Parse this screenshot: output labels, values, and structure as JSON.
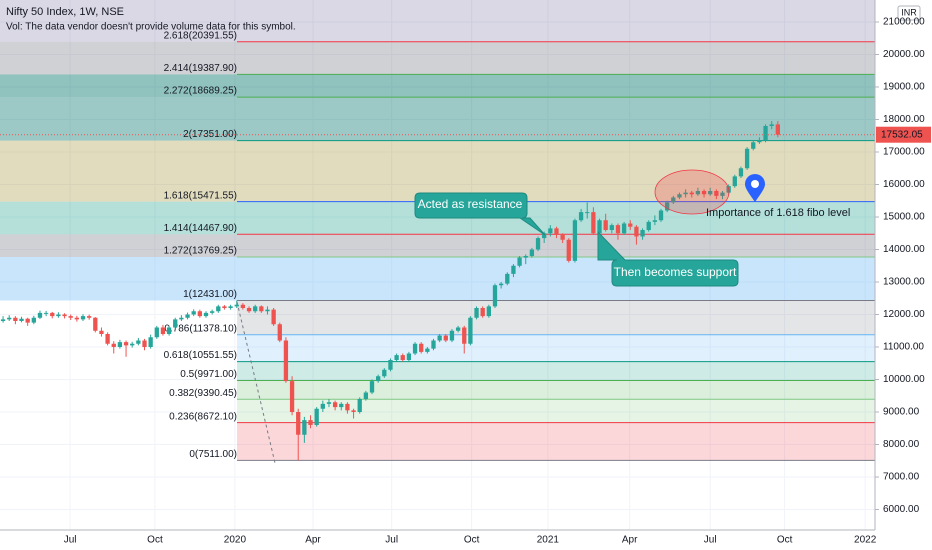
{
  "chart_data": {
    "type": "candlestick",
    "title": "Nifty 50 Index, 1W, NSE",
    "subtitle": "Vol: The data vendor doesn't provide volume data for this symbol.",
    "currency": "INR",
    "last_price_label": "17532.05",
    "up_color": "#26a69a",
    "down_color": "#ef5350",
    "grid": true,
    "ylim": [
      5369,
      21677
    ],
    "xlim": [
      -0.5,
      141.8
    ],
    "yticks": [
      {
        "value": 6000,
        "label": "6000.00"
      },
      {
        "value": 7000,
        "label": "7000.00"
      },
      {
        "value": 8000,
        "label": "8000.00"
      },
      {
        "value": 9000,
        "label": "9000.00"
      },
      {
        "value": 10000,
        "label": "10000.00"
      },
      {
        "value": 11000,
        "label": "11000.00"
      },
      {
        "value": 12000,
        "label": "12000.00"
      },
      {
        "value": 13000,
        "label": "13000.00"
      },
      {
        "value": 14000,
        "label": "14000.00"
      },
      {
        "value": 15000,
        "label": "15000.00"
      },
      {
        "value": 16000,
        "label": "16000.00"
      },
      {
        "value": 17000,
        "label": "17000.00"
      },
      {
        "value": 18000,
        "label": "18000.00"
      },
      {
        "value": 19000,
        "label": "19000.00"
      },
      {
        "value": 20000,
        "label": "20000.00"
      },
      {
        "value": 21000,
        "label": "21000.00"
      }
    ],
    "xticks": [
      {
        "value": 10.9,
        "label": "Jul"
      },
      {
        "value": 24.7,
        "label": "Oct"
      },
      {
        "value": 37.7,
        "label": "2020"
      },
      {
        "value": 50.4,
        "label": "Apr"
      },
      {
        "value": 63.2,
        "label": "Jul"
      },
      {
        "value": 76.2,
        "label": "Oct"
      },
      {
        "value": 88.6,
        "label": "2021"
      },
      {
        "value": 101.9,
        "label": "Apr"
      },
      {
        "value": 115,
        "label": "Jul"
      },
      {
        "value": 127.1,
        "label": "Oct"
      },
      {
        "value": 140.2,
        "label": "2022"
      }
    ],
    "fib_levels": [
      {
        "label": "0(7511.00)",
        "value": 7511,
        "color": "#787b86",
        "fill": "rgba(242,54,69,0.2)",
        "extend_left": false
      },
      {
        "label": "0.236(8672.10)",
        "value": 8672.1,
        "color": "#f23645",
        "fill": "rgba(129,199,132,0.2)",
        "extend_left": false
      },
      {
        "label": "0.382(9390.45)",
        "value": 9390.45,
        "color": "#81c784",
        "fill": "rgba(76,175,80,0.2)",
        "extend_left": false
      },
      {
        "label": "0.5(9971.00)",
        "value": 9971.0,
        "color": "#4caf50",
        "fill": "rgba(8,153,129,0.2)",
        "extend_left": false
      },
      {
        "label": "0.618(10551.55)",
        "value": 10551.55,
        "color": "#089981",
        "fill": "rgba(100,181,246,0.2)",
        "extend_left": false
      },
      {
        "label": "0.786(11378.10)",
        "value": 11378.1,
        "color": "#64b5f6",
        "fill": "rgba(120,123,134,0.2)",
        "extend_left": false
      },
      {
        "label": "1(12431.00)",
        "value": 12431.0,
        "color": "#787b86",
        "fill": "rgba(100,181,246,0.35)",
        "extend_left": true
      },
      {
        "label": "1.272(13769.25)",
        "value": 13769.25,
        "color": "#81c784",
        "fill": "rgba(120,123,134,0.35)",
        "extend_left": true
      },
      {
        "label": "1.414(14467.90)",
        "value": 14467.9,
        "color": "#f23645",
        "fill": "rgba(8,153,129,0.3)",
        "extend_left": true
      },
      {
        "label": "1.618(15471.55)",
        "value": 15471.55,
        "color": "#2962ff",
        "fill": "rgba(156,140,40,0.3)",
        "extend_left": true
      },
      {
        "label": "2(17351.00)",
        "value": 17351.0,
        "color": "#089981",
        "fill": "rgba(8,120,110,0.4)",
        "extend_left": true
      },
      {
        "label": "2.272(18689.25)",
        "value": 18689.25,
        "color": "#4caf50",
        "fill": "rgba(8,120,110,0.45)",
        "extend_left": true
      },
      {
        "label": "2.414(19387.90)",
        "value": 19387.9,
        "color": "#4caf50",
        "fill": "rgba(120,123,134,0.35)",
        "extend_left": true
      },
      {
        "label": "2.618(20391.55)",
        "value": 20391.55,
        "color": "#f23645",
        "fill": "rgba(70,60,120,0.2)",
        "extend_left": true
      }
    ],
    "annotations": [
      "Acted as resistance",
      "Then becomes support",
      "Importance of 1.618 fibo level"
    ],
    "candles": [
      [
        11800,
        11950,
        11750,
        11850
      ],
      [
        11850,
        11980,
        11800,
        11900
      ],
      [
        11900,
        11950,
        11700,
        11800
      ],
      [
        11800,
        11930,
        11760,
        11870
      ],
      [
        11870,
        11900,
        11650,
        11750
      ],
      [
        11750,
        11960,
        11700,
        11900
      ],
      [
        11900,
        12120,
        11860,
        12050
      ],
      [
        12050,
        12110,
        11950,
        12050
      ],
      [
        12050,
        12080,
        11880,
        11950
      ],
      [
        11950,
        12070,
        11900,
        12000
      ],
      [
        12000,
        12040,
        11880,
        11950
      ],
      [
        11950,
        12000,
        11830,
        11900
      ],
      [
        11900,
        11960,
        11780,
        11850
      ],
      [
        11850,
        12010,
        11800,
        11950
      ],
      [
        11950,
        12000,
        11840,
        11900
      ],
      [
        11900,
        11920,
        11450,
        11500
      ],
      [
        11500,
        11600,
        11320,
        11400
      ],
      [
        11400,
        11450,
        11050,
        11100
      ],
      [
        11100,
        11180,
        10800,
        11000
      ],
      [
        11000,
        11220,
        10950,
        11150
      ],
      [
        11150,
        11200,
        10700,
        11050
      ],
      [
        11050,
        11160,
        10980,
        11100
      ],
      [
        11100,
        11280,
        11050,
        11200
      ],
      [
        11200,
        11250,
        10900,
        11000
      ],
      [
        11000,
        11380,
        10950,
        11300
      ],
      [
        11300,
        11650,
        11250,
        11600
      ],
      [
        11600,
        11680,
        11350,
        11400
      ],
      [
        11400,
        11660,
        11350,
        11600
      ],
      [
        11600,
        11900,
        11550,
        11850
      ],
      [
        11850,
        11980,
        11800,
        11900
      ],
      [
        11900,
        12060,
        11850,
        12000
      ],
      [
        12000,
        12160,
        11950,
        12100
      ],
      [
        12100,
        12150,
        11900,
        11950
      ],
      [
        11950,
        12100,
        11900,
        12050
      ],
      [
        12050,
        12150,
        12000,
        12100
      ],
      [
        12100,
        12300,
        12050,
        12250
      ],
      [
        12250,
        12290,
        12150,
        12200
      ],
      [
        12200,
        12300,
        12150,
        12250
      ],
      [
        12250,
        12430,
        12200,
        12300
      ],
      [
        12300,
        12350,
        12150,
        12200
      ],
      [
        12200,
        12250,
        12050,
        12100
      ],
      [
        12100,
        12300,
        12050,
        12250
      ],
      [
        12250,
        12280,
        12050,
        12100
      ],
      [
        12100,
        12250,
        12000,
        12150
      ],
      [
        12150,
        12200,
        11650,
        11700
      ],
      [
        11700,
        11750,
        11150,
        11200
      ],
      [
        11200,
        11300,
        9900,
        9950
      ],
      [
        9950,
        10100,
        8900,
        9000
      ],
      [
        9000,
        9100,
        7511,
        8300
      ],
      [
        8300,
        8850,
        8050,
        8750
      ],
      [
        8750,
        8900,
        8500,
        8600
      ],
      [
        8600,
        9150,
        8550,
        9100
      ],
      [
        9100,
        9350,
        9000,
        9250
      ],
      [
        9250,
        9400,
        9150,
        9300
      ],
      [
        9300,
        9350,
        9050,
        9150
      ],
      [
        9150,
        9300,
        9050,
        9250
      ],
      [
        9250,
        9300,
        8950,
        9050
      ],
      [
        9050,
        9100,
        8800,
        9000
      ],
      [
        9000,
        9450,
        8950,
        9400
      ],
      [
        9400,
        9650,
        9350,
        9600
      ],
      [
        9600,
        10000,
        9550,
        9950
      ],
      [
        9950,
        10150,
        9900,
        10100
      ],
      [
        10100,
        10350,
        10050,
        10300
      ],
      [
        10300,
        10650,
        10250,
        10600
      ],
      [
        10600,
        10800,
        10550,
        10750
      ],
      [
        10750,
        10800,
        10550,
        10600
      ],
      [
        10600,
        10850,
        10550,
        10800
      ],
      [
        10800,
        11150,
        10750,
        11100
      ],
      [
        11100,
        11150,
        10800,
        10850
      ],
      [
        10850,
        11000,
        10800,
        10950
      ],
      [
        10950,
        11250,
        10900,
        11200
      ],
      [
        11200,
        11400,
        11150,
        11350
      ],
      [
        11350,
        11400,
        11150,
        11200
      ],
      [
        11200,
        11550,
        11150,
        11500
      ],
      [
        11500,
        11650,
        11450,
        11600
      ],
      [
        11600,
        11650,
        10800,
        11100
      ],
      [
        11100,
        11950,
        11050,
        11900
      ],
      [
        11900,
        12250,
        11850,
        12200
      ],
      [
        12200,
        12250,
        11900,
        11950
      ],
      [
        11950,
        12300,
        11900,
        12250
      ],
      [
        12250,
        12950,
        12200,
        12900
      ],
      [
        12900,
        13000,
        12800,
        12950
      ],
      [
        12950,
        13300,
        12900,
        13250
      ],
      [
        13250,
        13550,
        13150,
        13500
      ],
      [
        13500,
        13800,
        13450,
        13750
      ],
      [
        13750,
        13850,
        13550,
        13800
      ],
      [
        13800,
        14050,
        13750,
        14000
      ],
      [
        14000,
        14400,
        13950,
        14350
      ],
      [
        14350,
        14550,
        14200,
        14500
      ],
      [
        14500,
        14750,
        14400,
        14650
      ],
      [
        14650,
        14700,
        14350,
        14450
      ],
      [
        14450,
        14500,
        14200,
        14300
      ],
      [
        14300,
        14350,
        13600,
        13650
      ],
      [
        13650,
        14950,
        13600,
        14900
      ],
      [
        14900,
        15250,
        14850,
        15150
      ],
      [
        15150,
        15450,
        14950,
        15150
      ],
      [
        15150,
        15300,
        14450,
        14500
      ],
      [
        14500,
        14950,
        14450,
        14900
      ],
      [
        14900,
        15100,
        14550,
        14600
      ],
      [
        14600,
        14800,
        14500,
        14750
      ],
      [
        14750,
        14800,
        14300,
        14500
      ],
      [
        14500,
        14850,
        14450,
        14800
      ],
      [
        14800,
        14900,
        14600,
        14700
      ],
      [
        14700,
        14750,
        14150,
        14400
      ],
      [
        14400,
        14650,
        14300,
        14600
      ],
      [
        14600,
        14900,
        14550,
        14850
      ],
      [
        14850,
        15050,
        14750,
        14900
      ],
      [
        14900,
        15250,
        14850,
        15200
      ],
      [
        15200,
        15500,
        15150,
        15450
      ],
      [
        15450,
        15650,
        15400,
        15600
      ],
      [
        15600,
        15750,
        15550,
        15700
      ],
      [
        15700,
        15850,
        15600,
        15750
      ],
      [
        15750,
        15800,
        15600,
        15700
      ],
      [
        15700,
        15900,
        15650,
        15800
      ],
      [
        15800,
        15850,
        15600,
        15700
      ],
      [
        15700,
        15900,
        15650,
        15800
      ],
      [
        15800,
        15850,
        15550,
        15650
      ],
      [
        15650,
        15800,
        15550,
        15750
      ],
      [
        15750,
        16000,
        15700,
        15950
      ],
      [
        15950,
        16300,
        15900,
        16250
      ],
      [
        16250,
        16550,
        16200,
        16500
      ],
      [
        16500,
        17150,
        16450,
        17100
      ],
      [
        17100,
        17350,
        17050,
        17300
      ],
      [
        17300,
        17450,
        17250,
        17350
      ],
      [
        17350,
        17850,
        17300,
        17800
      ],
      [
        17800,
        17950,
        17700,
        17850
      ],
      [
        17850,
        17950,
        17450,
        17532.05
      ]
    ]
  }
}
